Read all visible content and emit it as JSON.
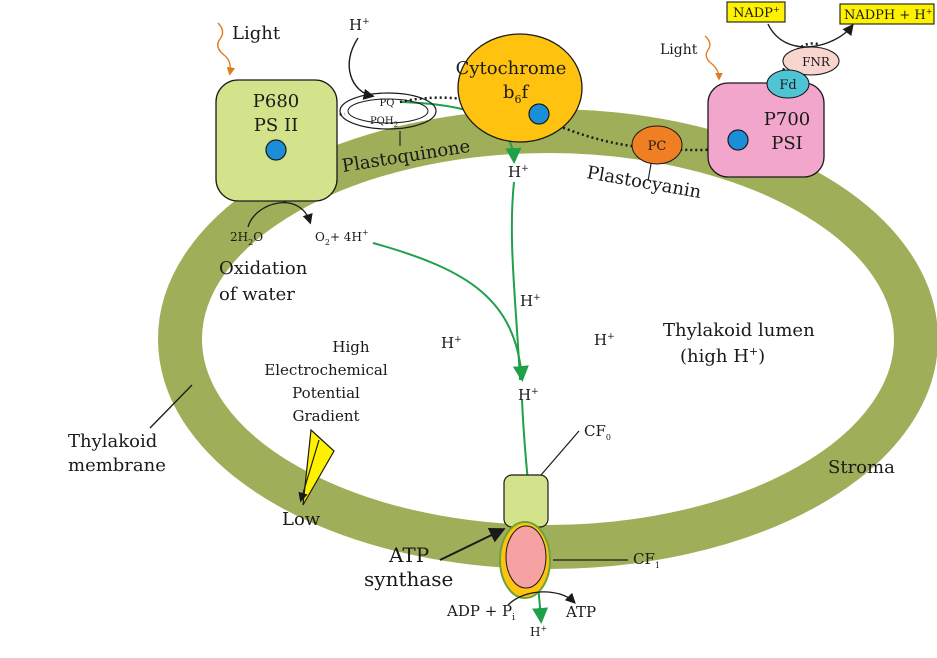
{
  "membrane_color": "#9fae58",
  "accent_green": "#1fa04a",
  "ps2": {
    "line1": "P680",
    "line2": "PS II",
    "color": "#d3e38b"
  },
  "ps1": {
    "line1": "P700",
    "line2": "PSI",
    "color": "#f2a6cc"
  },
  "cytochrome": {
    "line1": "Cytochrome",
    "line2_main": "b",
    "line2_sub": "6",
    "line2_tail": "f",
    "color": "#ffc20e"
  },
  "plastocyanin": {
    "abbr": "PC",
    "name": "Plastocyanin",
    "color": "#f07f23"
  },
  "plastoquinone": {
    "pq": "PQ",
    "pqh_main": "PQH",
    "pqh_sub": "2",
    "name": "Plastoquinone"
  },
  "fd": {
    "abbr": "Fd",
    "color": "#4fc4d4"
  },
  "fnr": {
    "abbr": "FNR",
    "color": "#f9d5cf"
  },
  "nadp": {
    "main": "NADP",
    "sup": "+",
    "color": "#fff200"
  },
  "nadph": {
    "text": "NADPH + H",
    "sup": "+"
  },
  "light_label": "Light",
  "water": {
    "reactant": "2H",
    "reactant_sub": "2",
    "reactant_tail": "O",
    "o2": "O",
    "o2_sub": "2",
    "o2_tail": "+ 4H",
    "o2_sup": "+"
  },
  "oxidation": {
    "line1": "Oxidation",
    "line2": "of water"
  },
  "proton": {
    "main": "H",
    "sup": "+"
  },
  "lumen": {
    "line1": "Thylakoid lumen",
    "line2_main": "(high H",
    "line2_sup": "+",
    "line2_tail": ")"
  },
  "gradient": {
    "line1": "High",
    "line2": "Electrochemical",
    "line3": "Potential",
    "line4": "Gradient",
    "low": "Low"
  },
  "membrane_label": {
    "line1": "Thylakoid",
    "line2": "membrane"
  },
  "stroma": "Stroma",
  "atp_synthase": {
    "line1": "ATP",
    "line2": "synthase",
    "cf0_main": "CF",
    "cf0_sub": "0",
    "cf1_main": "CF",
    "cf1_sub": "1"
  },
  "adp": {
    "main": "ADP + P",
    "sub": "i",
    "product": "ATP"
  }
}
